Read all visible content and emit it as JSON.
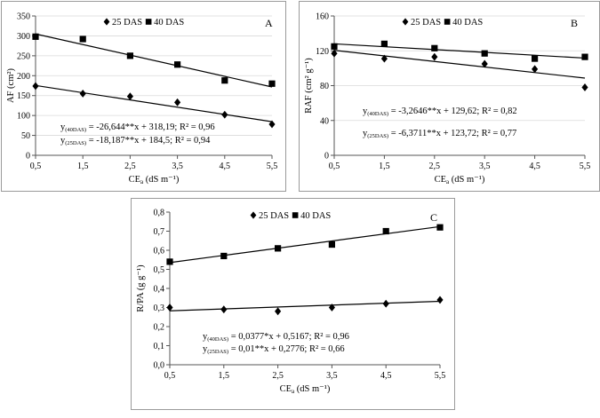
{
  "chart_data": [
    {
      "type": "scatter",
      "panel_label": "A",
      "legend": {
        "placement": "top",
        "entries": [
          "25 DAS",
          "40 DAS"
        ]
      },
      "xlabel": "CEa (dS m⁻¹)",
      "ylabel": "AF (cm²)",
      "x": [
        0.5,
        1.5,
        2.5,
        3.5,
        4.5,
        5.5
      ],
      "x_ticks": [
        "0,5",
        "1,5",
        "2,5",
        "3,5",
        "4,5",
        "5,5"
      ],
      "xlim": [
        0.5,
        5.5
      ],
      "ylim": [
        0,
        350
      ],
      "y_ticks": [
        "0",
        "50",
        "100",
        "150",
        "200",
        "250",
        "300",
        "350"
      ],
      "y_tick_values": [
        0,
        50,
        100,
        150,
        200,
        250,
        300,
        350
      ],
      "grid": true,
      "series": [
        {
          "name": "25 DAS",
          "marker": "diamond",
          "values": [
            174,
            155,
            148,
            133,
            102,
            78
          ],
          "trend": {
            "slope": -18.187,
            "intercept": 184.5
          }
        },
        {
          "name": "40 DAS",
          "marker": "square",
          "values": [
            298,
            292,
            250,
            228,
            188,
            180
          ],
          "trend": {
            "slope": -26.644,
            "intercept": 318.19
          }
        }
      ],
      "equations": [
        "y(40DAS) = -26,644**x + 318,19; R² = 0,96",
        "y(25DAS) = -18,187**x + 184,5; R² = 0,94"
      ]
    },
    {
      "type": "scatter",
      "panel_label": "B",
      "legend": {
        "placement": "top",
        "entries": [
          "25 DAS",
          "40 DAS"
        ]
      },
      "xlabel": "CEa (dS m⁻¹)",
      "ylabel": "RAF (cm² g⁻¹)",
      "x": [
        0.5,
        1.5,
        2.5,
        3.5,
        4.5,
        5.5
      ],
      "x_ticks": [
        "0,5",
        "1,5",
        "2,5",
        "3,5",
        "4,5",
        "5,5"
      ],
      "xlim": [
        0.5,
        5.5
      ],
      "ylim": [
        0,
        160
      ],
      "y_ticks": [
        "0",
        "40",
        "80",
        "120",
        "160"
      ],
      "y_tick_values": [
        0,
        40,
        80,
        120,
        160
      ],
      "grid": true,
      "series": [
        {
          "name": "25 DAS",
          "marker": "diamond",
          "values": [
            117,
            111,
            113,
            105,
            99,
            78
          ],
          "trend": {
            "slope": -6.3711,
            "intercept": 123.72
          }
        },
        {
          "name": "40 DAS",
          "marker": "square",
          "values": [
            125,
            128,
            123,
            117,
            111,
            113
          ],
          "trend": {
            "slope": -3.2646,
            "intercept": 129.62
          }
        }
      ],
      "equations": [
        "y(40DAS) = -3,2646**x + 129,62; R² = 0,82",
        "y(25DAS) = -6,3711**x + 123,72; R² = 0,77"
      ]
    },
    {
      "type": "scatter",
      "panel_label": "C",
      "legend": {
        "placement": "top",
        "entries": [
          "25 DAS",
          "40 DAS"
        ]
      },
      "xlabel": "CEa (dS m⁻¹)",
      "ylabel": "R/PA (g g⁻¹)",
      "x": [
        0.5,
        1.5,
        2.5,
        3.5,
        4.5,
        5.5
      ],
      "x_ticks": [
        "0,5",
        "1,5",
        "2,5",
        "3,5",
        "4,5",
        "5,5"
      ],
      "xlim": [
        0.5,
        5.5
      ],
      "ylim": [
        0,
        0.8
      ],
      "y_ticks": [
        "0,0",
        "0,1",
        "0,2",
        "0,3",
        "0,4",
        "0,5",
        "0,6",
        "0,7",
        "0,8"
      ],
      "y_tick_values": [
        0,
        0.1,
        0.2,
        0.3,
        0.4,
        0.5,
        0.6,
        0.7,
        0.8
      ],
      "grid": false,
      "series": [
        {
          "name": "25 DAS",
          "marker": "diamond",
          "values": [
            0.3,
            0.29,
            0.28,
            0.3,
            0.32,
            0.34
          ],
          "trend": {
            "slope": 0.01,
            "intercept": 0.2776
          }
        },
        {
          "name": "40 DAS",
          "marker": "square",
          "values": [
            0.54,
            0.57,
            0.61,
            0.63,
            0.7,
            0.72
          ],
          "trend": {
            "slope": 0.0377,
            "intercept": 0.5167
          }
        }
      ],
      "equations": [
        "y(40DAS) = 0,0377*x + 0,5167; R² = 0,96",
        "y(25DAS) = 0,01**x + 0,2776; R² = 0,66"
      ]
    }
  ]
}
